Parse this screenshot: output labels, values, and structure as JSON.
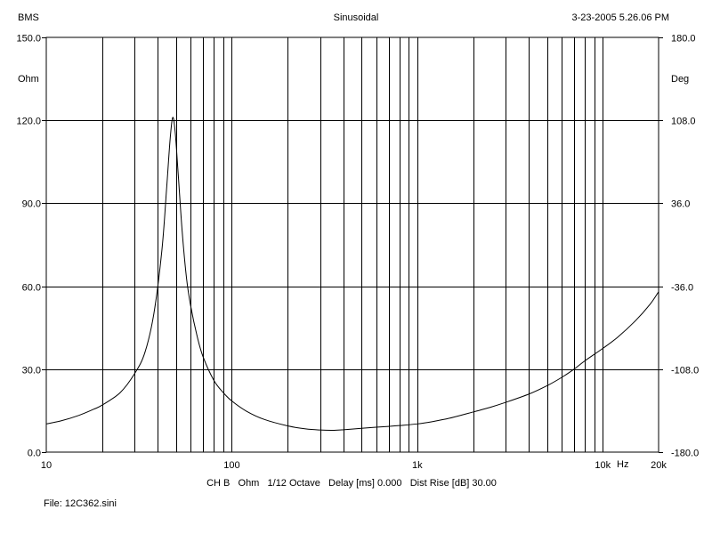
{
  "header": {
    "left": "BMS",
    "center": "Sinusoidal",
    "right": "3-23-2005 5.26.06 PM"
  },
  "footer": {
    "settings": "CH B   Ohm   1/12 Octave   Delay [ms] 0.000   Dist Rise [dB] 30.00",
    "file": "File: 12C362.sini"
  },
  "chart_data": {
    "type": "line",
    "title": "",
    "x_scale": "log",
    "xlim": [
      10,
      20000
    ],
    "x_unit": "Hz",
    "x_ticks": [
      {
        "value": 10,
        "label": "10"
      },
      {
        "value": 100,
        "label": "100"
      },
      {
        "value": 1000,
        "label": "1k"
      },
      {
        "value": 10000,
        "label": "10k"
      },
      {
        "value": 20000,
        "label": "20k"
      }
    ],
    "x_unit_label": "Hz",
    "x_minor_gridlines": [
      20,
      30,
      40,
      50,
      60,
      70,
      80,
      90,
      200,
      300,
      400,
      500,
      600,
      700,
      800,
      900,
      2000,
      3000,
      4000,
      5000,
      6000,
      7000,
      8000,
      9000
    ],
    "y_left": {
      "label": "Ohm",
      "lim": [
        0,
        150
      ],
      "ticks": [
        {
          "value": 0,
          "label": "0.0"
        },
        {
          "value": 30,
          "label": "30.0"
        },
        {
          "value": 60,
          "label": "60.0"
        },
        {
          "value": 90,
          "label": "90.0"
        },
        {
          "value": 120,
          "label": "120.0"
        },
        {
          "value": 150,
          "label": "150.0"
        }
      ]
    },
    "y_right": {
      "label": "Deg",
      "lim": [
        -180,
        180
      ],
      "ticks": [
        {
          "value": -180,
          "label": "-180.0"
        },
        {
          "value": -108,
          "label": "-108.0"
        },
        {
          "value": -36,
          "label": "-36.0"
        },
        {
          "value": 36,
          "label": "36.0"
        },
        {
          "value": 108,
          "label": "108.0"
        },
        {
          "value": 180,
          "label": "180.0"
        }
      ]
    },
    "grid": true,
    "series": [
      {
        "color": "#000000",
        "axis": "left",
        "points": [
          [
            10,
            10.2
          ],
          [
            12,
            11.3
          ],
          [
            15,
            13.3
          ],
          [
            18,
            15.5
          ],
          [
            20,
            17.0
          ],
          [
            25,
            21.5
          ],
          [
            30,
            28.5
          ],
          [
            34,
            36.0
          ],
          [
            38,
            50.0
          ],
          [
            42,
            73.0
          ],
          [
            44.5,
            95.0
          ],
          [
            46.5,
            113.0
          ],
          [
            48,
            121.0
          ],
          [
            49.5,
            116.0
          ],
          [
            51.5,
            100.0
          ],
          [
            54,
            80.0
          ],
          [
            57,
            63.0
          ],
          [
            60,
            53.0
          ],
          [
            65,
            42.0
          ],
          [
            70,
            34.5
          ],
          [
            80,
            26.0
          ],
          [
            90,
            21.5
          ],
          [
            100,
            18.5
          ],
          [
            120,
            14.8
          ],
          [
            150,
            11.8
          ],
          [
            200,
            9.5
          ],
          [
            250,
            8.4
          ],
          [
            300,
            8.0
          ],
          [
            350,
            7.9
          ],
          [
            400,
            8.1
          ],
          [
            500,
            8.6
          ],
          [
            600,
            9.0
          ],
          [
            700,
            9.3
          ],
          [
            800,
            9.6
          ],
          [
            1000,
            10.2
          ],
          [
            1200,
            11.0
          ],
          [
            1500,
            12.3
          ],
          [
            2000,
            14.5
          ],
          [
            2500,
            16.3
          ],
          [
            3000,
            18.0
          ],
          [
            4000,
            21.0
          ],
          [
            5000,
            24.0
          ],
          [
            6000,
            27.0
          ],
          [
            7000,
            30.0
          ],
          [
            8000,
            33.0
          ],
          [
            10000,
            37.5
          ],
          [
            12000,
            41.5
          ],
          [
            15000,
            47.5
          ],
          [
            18000,
            53.5
          ],
          [
            20000,
            58.0
          ]
        ]
      }
    ]
  }
}
